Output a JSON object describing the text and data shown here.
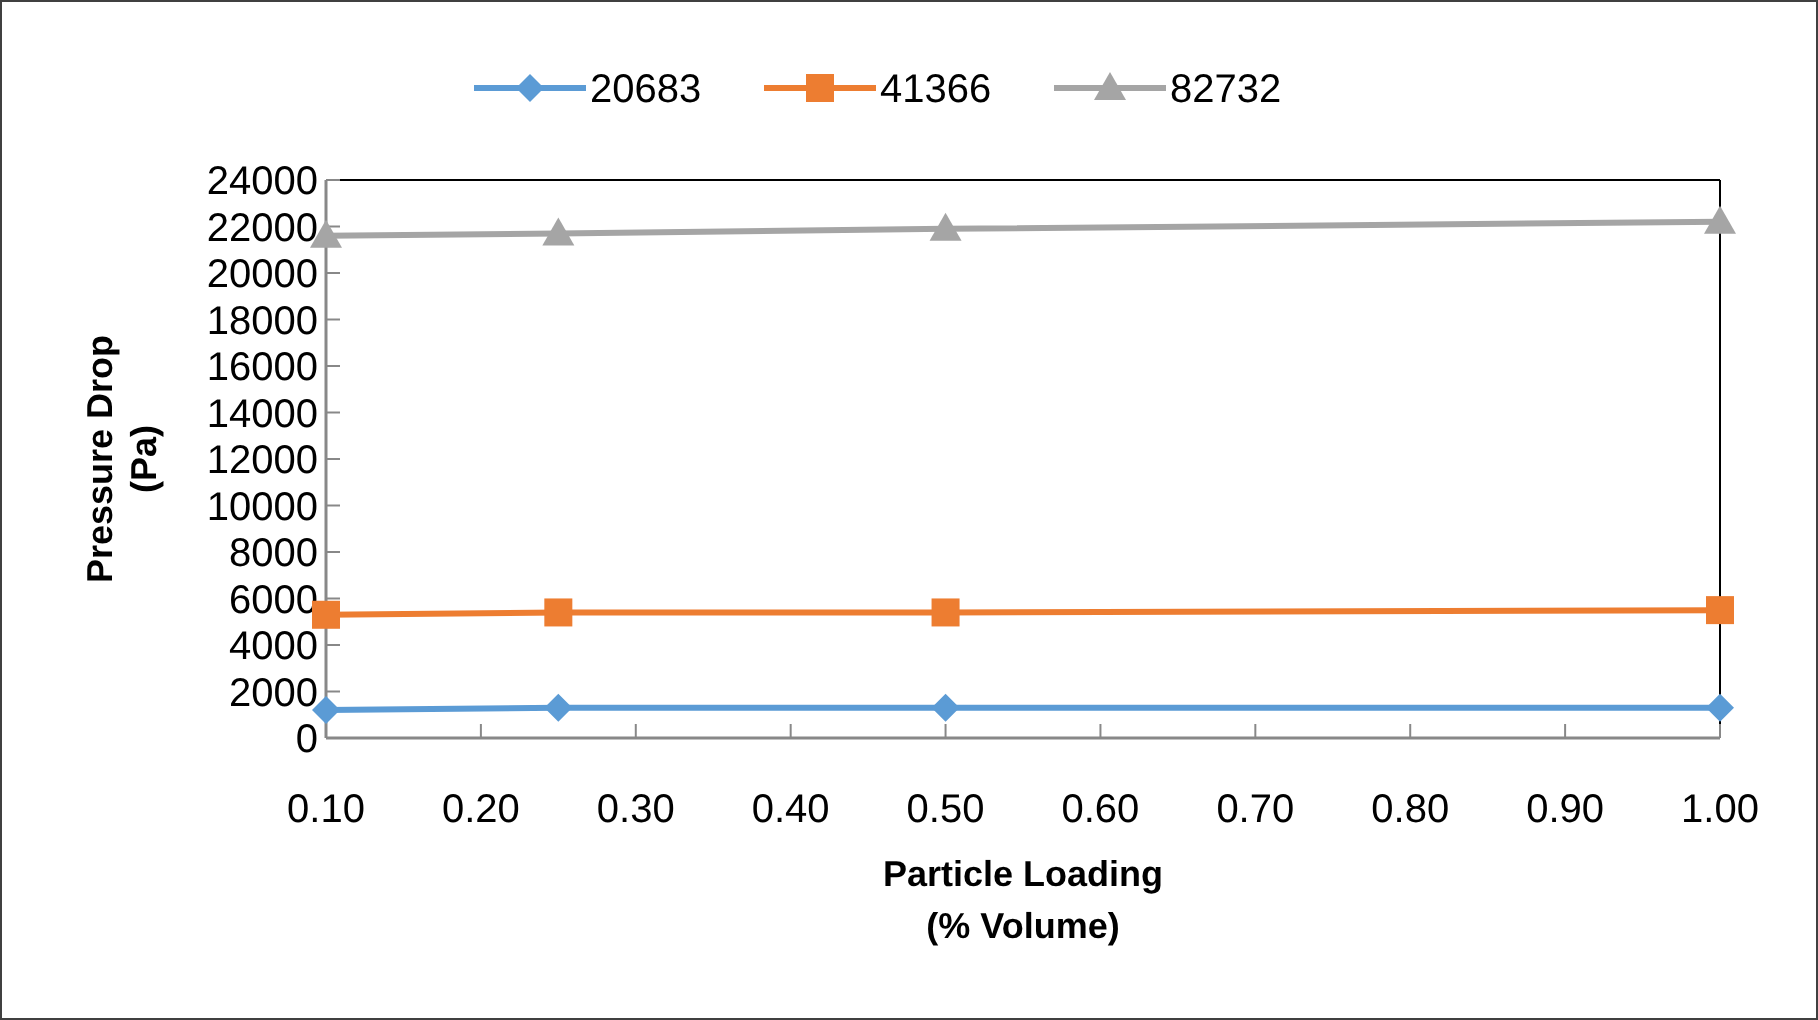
{
  "chart_data": {
    "type": "line",
    "xlabel": "Particle Loading\n(% Volume)",
    "ylabel": "Pressure Drop\n(Pa)",
    "x": [
      0.1,
      0.25,
      0.5,
      1.0
    ],
    "xlim": [
      0.1,
      1.0
    ],
    "xticks": [
      {
        "value": 0.1,
        "label": "0.10"
      },
      {
        "value": 0.2,
        "label": "0.20"
      },
      {
        "value": 0.3,
        "label": "0.30"
      },
      {
        "value": 0.4,
        "label": "0.40"
      },
      {
        "value": 0.5,
        "label": "0.50"
      },
      {
        "value": 0.6,
        "label": "0.60"
      },
      {
        "value": 0.7,
        "label": "0.70"
      },
      {
        "value": 0.8,
        "label": "0.80"
      },
      {
        "value": 0.9,
        "label": "0.90"
      },
      {
        "value": 1.0,
        "label": "1.00"
      }
    ],
    "ylim": [
      0,
      24000
    ],
    "yticks": [
      0,
      2000,
      4000,
      6000,
      8000,
      10000,
      12000,
      14000,
      16000,
      18000,
      20000,
      22000,
      24000
    ],
    "grid": false,
    "legend": "top",
    "series": [
      {
        "name": "20683",
        "color": "#5b9bd5",
        "marker": "diamond",
        "values": [
          1200,
          1300,
          1300,
          1300
        ]
      },
      {
        "name": "41366",
        "color": "#ed7d31",
        "marker": "square",
        "values": [
          5300,
          5400,
          5400,
          5500
        ]
      },
      {
        "name": "82732",
        "color": "#a5a5a5",
        "marker": "triangle",
        "values": [
          21600,
          21700,
          21900,
          22200
        ]
      }
    ]
  }
}
